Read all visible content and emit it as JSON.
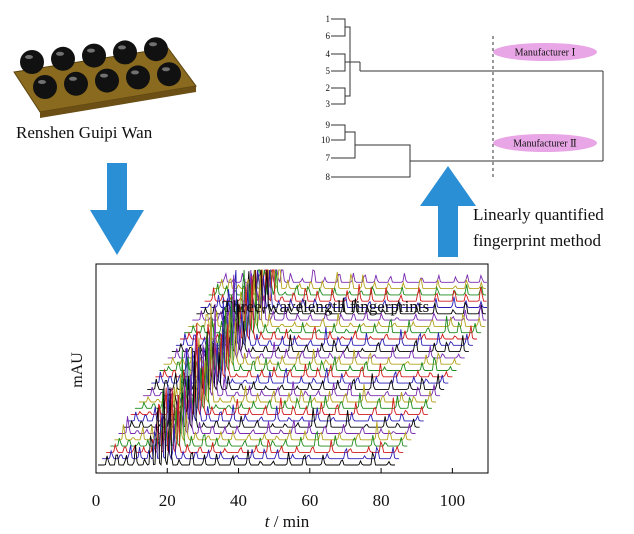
{
  "product": {
    "name": "Renshen Guipi Wan",
    "image_icon": "pill-blister-pack"
  },
  "method": {
    "line1": "Linearly quantified",
    "line2": "fingerprint method"
  },
  "dendrogram": {
    "leaves": [
      "1",
      "6",
      "4",
      "5",
      "2",
      "3",
      "9",
      "10",
      "7",
      "8"
    ],
    "groups": [
      {
        "label": "Manufacturer Ⅰ",
        "members": [
          "1",
          "6",
          "4",
          "5",
          "2",
          "3"
        ]
      },
      {
        "label": "Manufacturer Ⅱ",
        "members": [
          "9",
          "10",
          "7",
          "8"
        ]
      }
    ],
    "label_fill": "#e9a6e6",
    "cut_line": "dashed"
  },
  "chart_data": {
    "type": "line",
    "title": "Three-wavelength fingerprints",
    "xlabel_italic": "t",
    "xlabel_rest": " / min",
    "ylabel": "mAU",
    "xlim": [
      0,
      110
    ],
    "xticks": [
      "0",
      "20",
      "40",
      "60",
      "80",
      "100"
    ],
    "n_traces": 30,
    "trace_colors": [
      "#000000",
      "#2a1fb5",
      "#d11a1a",
      "#1c8a1c",
      "#b5a31f",
      "#7a2bb0"
    ],
    "grid": false
  },
  "colors": {
    "arrow": "#2b8fd6",
    "axis": "#000000"
  }
}
